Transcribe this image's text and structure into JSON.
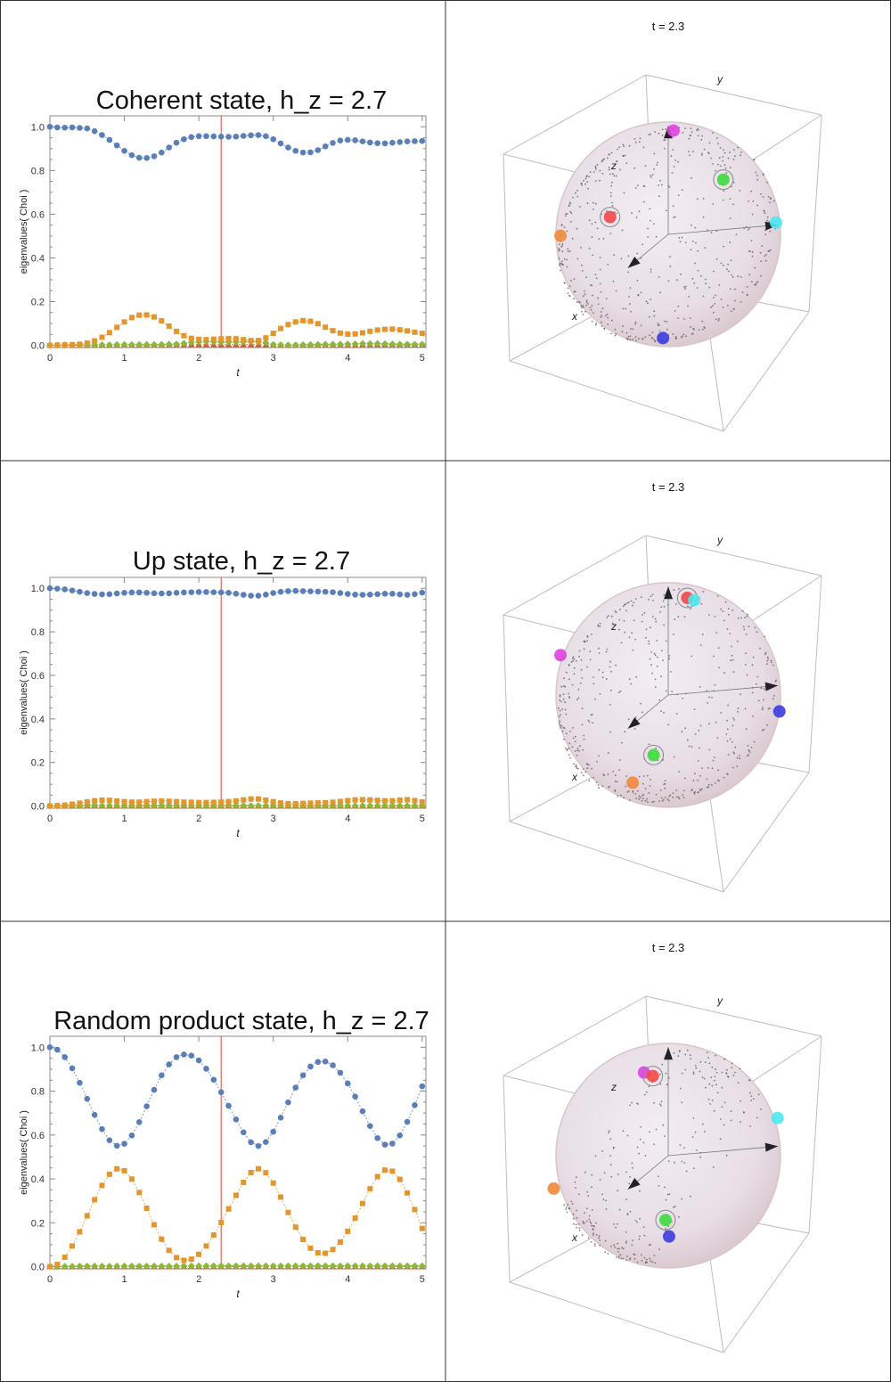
{
  "colors": {
    "series": [
      "#5a7fb8",
      "#e3962b",
      "#8cb83a",
      "#d95a33"
    ],
    "marker_line": "#e0473a",
    "grid_border": "#333333",
    "axis": "#888888",
    "sphere_dots": "#555555",
    "point_colors": {
      "magenta": "#e040e0",
      "orange": "#f08a3a",
      "cyan": "#4ee8ee",
      "blue": "#3c3ce0",
      "red": "#f24848",
      "green": "#3cdc3c"
    }
  },
  "chart_data": [
    {
      "type": "scatter",
      "title": "Coherent state, h_z = 2.7",
      "xlabel": "t",
      "ylabel": "eigenvalues( Choi )",
      "xlim": [
        0,
        5.05
      ],
      "ylim": [
        -0.01,
        1.05
      ],
      "xticks": [
        "0",
        "1",
        "2",
        "3",
        "4",
        "5"
      ],
      "yticks": [
        "0.0",
        "0.2",
        "0.4",
        "0.6",
        "0.8",
        "1.0"
      ],
      "marker_t": 2.3,
      "grid": false,
      "t_step": 0.1,
      "series": [
        {
          "marker": "circle",
          "values": [
            1.0,
            0.997,
            0.996,
            0.997,
            0.995,
            0.992,
            0.98,
            0.962,
            0.94,
            0.915,
            0.89,
            0.87,
            0.858,
            0.857,
            0.865,
            0.882,
            0.905,
            0.927,
            0.943,
            0.953,
            0.957,
            0.957,
            0.956,
            0.955,
            0.954,
            0.955,
            0.958,
            0.961,
            0.962,
            0.957,
            0.943,
            0.924,
            0.905,
            0.89,
            0.882,
            0.883,
            0.893,
            0.91,
            0.926,
            0.937,
            0.94,
            0.938,
            0.933,
            0.928,
            0.925,
            0.924,
            0.927,
            0.93,
            0.933,
            0.934,
            0.935
          ]
        },
        {
          "marker": "square",
          "values": [
            0.0,
            0.001,
            0.002,
            0.003,
            0.005,
            0.01,
            0.02,
            0.037,
            0.058,
            0.082,
            0.107,
            0.127,
            0.138,
            0.139,
            0.13,
            0.112,
            0.088,
            0.064,
            0.044,
            0.032,
            0.027,
            0.026,
            0.028,
            0.03,
            0.031,
            0.03,
            0.026,
            0.022,
            0.022,
            0.034,
            0.055,
            0.077,
            0.095,
            0.107,
            0.113,
            0.11,
            0.099,
            0.083,
            0.067,
            0.056,
            0.051,
            0.052,
            0.057,
            0.064,
            0.07,
            0.073,
            0.074,
            0.071,
            0.066,
            0.06,
            0.055
          ]
        },
        {
          "marker": "diamond",
          "values": [
            0.0,
            0.0,
            0.001,
            0.001,
            0.001,
            0.001,
            0.001,
            0.002,
            0.002,
            0.003,
            0.003,
            0.003,
            0.003,
            0.003,
            0.003,
            0.004,
            0.005,
            0.006,
            0.009,
            0.013,
            0.016,
            0.017,
            0.016,
            0.015,
            0.015,
            0.015,
            0.016,
            0.017,
            0.016,
            0.011,
            0.004,
            0.002,
            0.001,
            0.001,
            0.002,
            0.003,
            0.004,
            0.005,
            0.005,
            0.005,
            0.006,
            0.007,
            0.008,
            0.008,
            0.008,
            0.007,
            0.006,
            0.005,
            0.005,
            0.005,
            0.005
          ]
        },
        {
          "marker": "triangle",
          "values": [
            0.0,
            0.0,
            0.0,
            0.0,
            0.0,
            0.0,
            0.0,
            0.001,
            0.001,
            0.001,
            0.001,
            0.001,
            0.001,
            0.001,
            0.001,
            0.001,
            0.001,
            0.002,
            0.002,
            0.003,
            0.003,
            0.003,
            0.003,
            0.003,
            0.003,
            0.003,
            0.003,
            0.003,
            0.003,
            0.002,
            0.001,
            0.001,
            0.001,
            0.001,
            0.001,
            0.001,
            0.001,
            0.001,
            0.001,
            0.001,
            0.001,
            0.001,
            0.002,
            0.002,
            0.002,
            0.002,
            0.002,
            0.002,
            0.002,
            0.002,
            0.002
          ]
        }
      ],
      "bloch": {
        "time_label": "t = 2.3",
        "axes": [
          "x",
          "y",
          "z"
        ],
        "points": [
          {
            "color": "magenta",
            "pos": [
              0.0,
              0.05,
              1.0
            ]
          },
          {
            "color": "orange",
            "pos": [
              0.1,
              -1.0,
              0.1
            ]
          },
          {
            "color": "cyan",
            "pos": [
              -0.1,
              1.0,
              0.0
            ]
          },
          {
            "color": "blue",
            "pos": [
              0.0,
              -0.05,
              -1.0
            ]
          },
          {
            "color": "red",
            "pos": [
              0.55,
              -0.38,
              0.35
            ]
          },
          {
            "color": "green",
            "pos": [
              -0.55,
              0.35,
              0.35
            ]
          }
        ]
      }
    },
    {
      "type": "scatter",
      "title": "Up state, h_z = 2.7",
      "xlabel": "t",
      "ylabel": "eigenvalues( Choi )",
      "xlim": [
        0,
        5.05
      ],
      "ylim": [
        -0.01,
        1.05
      ],
      "xticks": [
        "0",
        "1",
        "2",
        "3",
        "4",
        "5"
      ],
      "yticks": [
        "0.0",
        "0.2",
        "0.4",
        "0.6",
        "0.8",
        "1.0"
      ],
      "marker_t": 2.3,
      "grid": false,
      "t_step": 0.1,
      "series": [
        {
          "marker": "circle",
          "values": [
            1.0,
            0.998,
            0.995,
            0.99,
            0.984,
            0.978,
            0.974,
            0.972,
            0.973,
            0.976,
            0.979,
            0.981,
            0.981,
            0.979,
            0.977,
            0.976,
            0.977,
            0.979,
            0.981,
            0.982,
            0.983,
            0.983,
            0.982,
            0.981,
            0.979,
            0.975,
            0.97,
            0.966,
            0.966,
            0.971,
            0.978,
            0.984,
            0.987,
            0.988,
            0.987,
            0.986,
            0.985,
            0.984,
            0.982,
            0.978,
            0.974,
            0.971,
            0.97,
            0.971,
            0.973,
            0.975,
            0.975,
            0.972,
            0.97,
            0.973,
            0.98
          ]
        },
        {
          "marker": "square",
          "values": [
            0.0,
            0.002,
            0.004,
            0.008,
            0.013,
            0.019,
            0.024,
            0.027,
            0.026,
            0.023,
            0.02,
            0.018,
            0.018,
            0.02,
            0.022,
            0.023,
            0.022,
            0.02,
            0.018,
            0.017,
            0.016,
            0.016,
            0.017,
            0.018,
            0.02,
            0.023,
            0.028,
            0.032,
            0.032,
            0.027,
            0.02,
            0.014,
            0.011,
            0.011,
            0.012,
            0.013,
            0.014,
            0.015,
            0.017,
            0.021,
            0.025,
            0.028,
            0.029,
            0.028,
            0.026,
            0.024,
            0.024,
            0.027,
            0.029,
            0.025,
            0.019
          ]
        },
        {
          "marker": "diamond",
          "values": [
            0.0,
            0.0,
            0.001,
            0.001,
            0.002,
            0.003,
            0.003,
            0.002,
            0.002,
            0.002,
            0.001,
            0.001,
            0.002,
            0.002,
            0.002,
            0.002,
            0.002,
            0.002,
            0.002,
            0.002,
            0.002,
            0.002,
            0.002,
            0.002,
            0.002,
            0.002,
            0.002,
            0.002,
            0.002,
            0.002,
            0.002,
            0.002,
            0.002,
            0.001,
            0.001,
            0.001,
            0.001,
            0.001,
            0.001,
            0.001,
            0.001,
            0.001,
            0.001,
            0.001,
            0.001,
            0.001,
            0.001,
            0.001,
            0.001,
            0.001,
            0.001
          ]
        },
        {
          "marker": "triangle",
          "values": [
            0.0,
            0.0,
            0.0,
            0.0,
            0.0,
            0.0,
            0.0,
            0.0,
            0.0,
            0.0,
            0.0,
            0.0,
            0.0,
            0.0,
            0.0,
            0.0,
            0.0,
            0.0,
            0.0,
            0.0,
            0.0,
            0.0,
            0.0,
            0.0,
            0.0,
            0.0,
            0.0,
            0.0,
            0.0,
            0.0,
            0.0,
            0.0,
            0.0,
            0.0,
            0.0,
            0.0,
            0.0,
            0.0,
            0.0,
            0.0,
            0.0,
            0.0,
            0.0,
            0.0,
            0.0,
            0.0,
            0.0,
            0.0,
            0.0,
            0.0,
            0.0
          ]
        }
      ],
      "bloch": {
        "time_label": "t = 2.3",
        "axes": [
          "x",
          "y",
          "z"
        ],
        "points": [
          {
            "color": "magenta",
            "pos": [
              0.1,
              -1.0,
              0.5
            ]
          },
          {
            "color": "red",
            "pos": [
              -0.1,
              0.15,
              0.9
            ]
          },
          {
            "color": "cyan",
            "pos": [
              -0.15,
              0.2,
              0.86
            ]
          },
          {
            "color": "blue",
            "pos": [
              -0.2,
              1.0,
              -0.3
            ]
          },
          {
            "color": "green",
            "pos": [
              0.9,
              0.15,
              -0.35
            ]
          },
          {
            "color": "orange",
            "pos": [
              0.9,
              -0.05,
              -0.6
            ]
          }
        ]
      }
    },
    {
      "type": "scatter",
      "title": "Random product state, h_z = 2.7",
      "xlabel": "t",
      "ylabel": "eigenvalues( Choi )",
      "xlim": [
        0,
        5.05
      ],
      "ylim": [
        -0.01,
        1.05
      ],
      "xticks": [
        "0",
        "1",
        "2",
        "3",
        "4",
        "5"
      ],
      "yticks": [
        "0.0",
        "0.2",
        "0.4",
        "0.6",
        "0.8",
        "1.0"
      ],
      "marker_t": 2.3,
      "grid": false,
      "t_step": 0.1,
      "series": [
        {
          "marker": "circle",
          "values": [
            1.0,
            0.989,
            0.955,
            0.904,
            0.838,
            0.765,
            0.692,
            0.627,
            0.576,
            0.551,
            0.56,
            0.598,
            0.659,
            0.731,
            0.806,
            0.872,
            0.922,
            0.955,
            0.967,
            0.962,
            0.94,
            0.902,
            0.852,
            0.795,
            0.733,
            0.671,
            0.612,
            0.567,
            0.55,
            0.568,
            0.615,
            0.679,
            0.749,
            0.816,
            0.872,
            0.912,
            0.933,
            0.935,
            0.918,
            0.884,
            0.835,
            0.775,
            0.708,
            0.641,
            0.586,
            0.556,
            0.561,
            0.598,
            0.66,
            0.736,
            0.822
          ]
        },
        {
          "marker": "square",
          "values": [
            0.0,
            0.01,
            0.043,
            0.094,
            0.159,
            0.232,
            0.305,
            0.37,
            0.421,
            0.446,
            0.437,
            0.399,
            0.338,
            0.266,
            0.191,
            0.125,
            0.074,
            0.041,
            0.029,
            0.034,
            0.056,
            0.094,
            0.144,
            0.201,
            0.263,
            0.325,
            0.384,
            0.429,
            0.446,
            0.428,
            0.381,
            0.317,
            0.247,
            0.18,
            0.124,
            0.084,
            0.063,
            0.061,
            0.078,
            0.112,
            0.161,
            0.221,
            0.288,
            0.355,
            0.41,
            0.44,
            0.435,
            0.398,
            0.336,
            0.26,
            0.174
          ]
        },
        {
          "marker": "diamond",
          "values": [
            0.0,
            0.0,
            0.001,
            0.001,
            0.002,
            0.002,
            0.002,
            0.002,
            0.002,
            0.002,
            0.002,
            0.002,
            0.002,
            0.002,
            0.002,
            0.002,
            0.002,
            0.002,
            0.003,
            0.003,
            0.003,
            0.003,
            0.003,
            0.003,
            0.003,
            0.003,
            0.003,
            0.003,
            0.003,
            0.003,
            0.003,
            0.003,
            0.003,
            0.003,
            0.003,
            0.003,
            0.004,
            0.003,
            0.003,
            0.003,
            0.003,
            0.003,
            0.003,
            0.003,
            0.003,
            0.003,
            0.003,
            0.003,
            0.003,
            0.003,
            0.003
          ]
        },
        {
          "marker": "triangle",
          "values": [
            0.0,
            0.0,
            0.0,
            0.0,
            0.0,
            0.0,
            0.0,
            0.0,
            0.0,
            0.0,
            0.0,
            0.0,
            0.0,
            0.0,
            0.0,
            0.0,
            0.0,
            0.0,
            0.0,
            0.0,
            0.0,
            0.0,
            0.0,
            0.0,
            0.0,
            0.0,
            0.0,
            0.0,
            0.0,
            0.0,
            0.0,
            0.0,
            0.0,
            0.0,
            0.0,
            0.0,
            0.0,
            0.0,
            0.0,
            0.0,
            0.0,
            0.0,
            0.0,
            0.0,
            0.0,
            0.0,
            0.0,
            0.0,
            0.0,
            0.0,
            0.0
          ]
        }
      ],
      "bloch": {
        "time_label": "t = 2.3",
        "axes": [
          "x",
          "y",
          "z"
        ],
        "points": [
          {
            "color": "magenta",
            "pos": [
              0.1,
              -0.2,
              0.85
            ]
          },
          {
            "color": "red",
            "pos": [
              0.15,
              -0.1,
              0.82
            ]
          },
          {
            "color": "cyan",
            "pos": [
              -0.3,
              0.95,
              0.2
            ]
          },
          {
            "color": "orange",
            "pos": [
              0.3,
              -1.0,
              -0.15
            ]
          },
          {
            "color": "green",
            "pos": [
              0.7,
              0.2,
              -0.45
            ]
          },
          {
            "color": "blue",
            "pos": [
              0.75,
              0.25,
              -0.6
            ]
          }
        ]
      }
    }
  ]
}
